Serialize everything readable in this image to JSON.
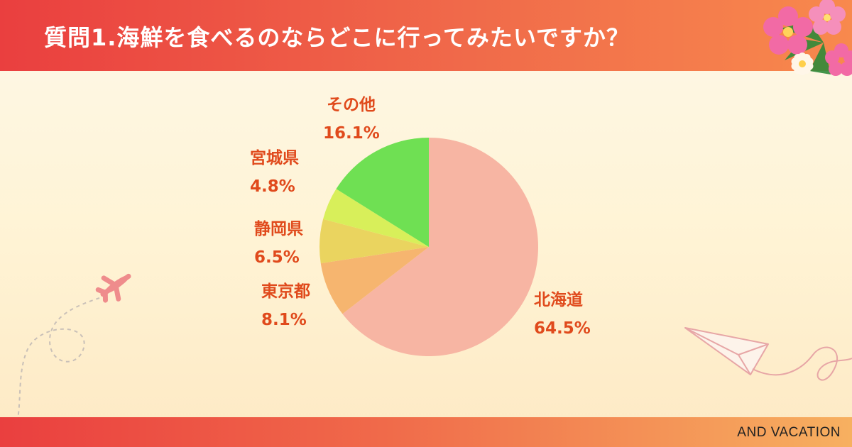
{
  "header": {
    "title": "質問1.海鮮を食べるのならどこに行ってみたいですか？"
  },
  "footer": {
    "brand": "AND VACATION"
  },
  "decorations": [
    "hibiscus-flowers",
    "airplane-icon",
    "paper-plane-icon"
  ],
  "chart_data": {
    "type": "pie",
    "start_angle_deg": 0,
    "direction": "clockwise",
    "slices": [
      {
        "label": "北海道",
        "value": 64.5,
        "value_label": "64.5%",
        "color": "#f7b5a3"
      },
      {
        "label": "東京都",
        "value": 8.1,
        "value_label": "8.1%",
        "color": "#f6b56f"
      },
      {
        "label": "静岡県",
        "value": 6.5,
        "value_label": "6.5%",
        "color": "#ead45f"
      },
      {
        "label": "宮城県",
        "value": 4.8,
        "value_label": "4.8%",
        "color": "#d8ef5a"
      },
      {
        "label": "その他",
        "value": 16.1,
        "value_label": "16.1%",
        "color": "#6fe053"
      }
    ]
  }
}
